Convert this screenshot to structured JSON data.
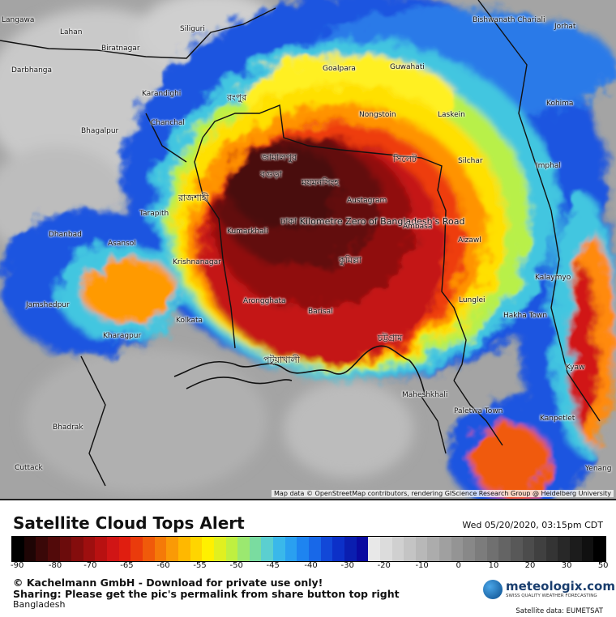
{
  "title": "Satellite Cloud Tops Alert",
  "timestamp": "Wed 05/20/2020, 03:15pm CDT",
  "attribution": "Map data © OpenStreetMap contributors, rendering GIScience Research Group @ Heidelberg University",
  "credit_line": "© Kachelmann GmbH - Download for private use only!",
  "sharing_line": "Sharing: Please get the pic's permalink from share button top right",
  "region": "Bangladesh",
  "logo": {
    "name": "meteologix.com",
    "tagline": "SWISS QUALITY WEATHER FORECASTING"
  },
  "satellite_source": "Satellite data: EUMETSAT",
  "colorbar": {
    "ticks": [
      "-90",
      "-80",
      "-70",
      "-65",
      "-60",
      "-55",
      "-50",
      "-45",
      "-40",
      "-30",
      "-20",
      "-10",
      "0",
      "10",
      "20",
      "30",
      "50"
    ],
    "colors": [
      "#000000",
      "#1e0505",
      "#3a0808",
      "#520a0a",
      "#6b0c0c",
      "#840d0d",
      "#9e0f0f",
      "#b81111",
      "#d11515",
      "#e01e10",
      "#ea3b0c",
      "#f05a0a",
      "#f57a08",
      "#fa9a06",
      "#ffb800",
      "#ffd500",
      "#fff000",
      "#e0f020",
      "#bff040",
      "#9be870",
      "#7adca0",
      "#5bcfd0",
      "#3ab8ea",
      "#2aa0f0",
      "#1e84f0",
      "#1868e8",
      "#1248d8",
      "#0c30c8",
      "#0a1eb0",
      "#0a0aa0",
      "#e8e8e8",
      "#dcdcdc",
      "#d0d0d0",
      "#c4c4c4",
      "#b8b8b8",
      "#acacac",
      "#a0a0a0",
      "#949494",
      "#888888",
      "#7c7c7c",
      "#707070",
      "#646464",
      "#585858",
      "#4c4c4c",
      "#404040",
      "#343434",
      "#282828",
      "#1c1c1c",
      "#101010",
      "#000000"
    ]
  },
  "places": [
    {
      "name": "Langawa",
      "big": false
    },
    {
      "name": "Lahan",
      "big": false
    },
    {
      "name": "Biratnagar",
      "big": false
    },
    {
      "name": "Siliguri",
      "big": false
    },
    {
      "name": "Darbhanga",
      "big": false
    },
    {
      "name": "Karandighi",
      "big": false
    },
    {
      "name": "রংপুর",
      "big": true
    },
    {
      "name": "Goalpara",
      "big": false
    },
    {
      "name": "Guwahati",
      "big": false
    },
    {
      "name": "Bishwanath Chariali",
      "big": false
    },
    {
      "name": "Jorhat",
      "big": false
    },
    {
      "name": "Bhagalpur",
      "big": false
    },
    {
      "name": "Chanchal",
      "big": false
    },
    {
      "name": "Nongstoin",
      "big": false
    },
    {
      "name": "Laskein",
      "big": false
    },
    {
      "name": "Kohima",
      "big": false
    },
    {
      "name": "জামালপুর",
      "big": true
    },
    {
      "name": "সিলেট",
      "big": true
    },
    {
      "name": "Silchar",
      "big": false
    },
    {
      "name": "বগুড়া",
      "big": true
    },
    {
      "name": "ময়মনসিংহ",
      "big": true
    },
    {
      "name": "Imphal",
      "big": false
    },
    {
      "name": "রাজশাহী",
      "big": true
    },
    {
      "name": "Austagram",
      "big": false
    },
    {
      "name": "Tarapith",
      "big": false
    },
    {
      "name": "ঢাকা Kilometre Zero of Bangladesh's Road",
      "big": true
    },
    {
      "name": "Ambasa",
      "big": false
    },
    {
      "name": "Dhanbad",
      "big": false
    },
    {
      "name": "Kumarkhali",
      "big": false
    },
    {
      "name": "Asansol",
      "big": false
    },
    {
      "name": "Aizawl",
      "big": false
    },
    {
      "name": "Krishnanagar",
      "big": false
    },
    {
      "name": "কুমিল্লা",
      "big": true
    },
    {
      "name": "Kalaymyo",
      "big": false
    },
    {
      "name": "Jamshedpur",
      "big": false
    },
    {
      "name": "Arongghata",
      "big": false
    },
    {
      "name": "Barisal",
      "big": false
    },
    {
      "name": "Lunglei",
      "big": false
    },
    {
      "name": "Hakha Town",
      "big": false
    },
    {
      "name": "Kolkata",
      "big": false
    },
    {
      "name": "Kharagpur",
      "big": false
    },
    {
      "name": "চট্টগ্রাম",
      "big": true
    },
    {
      "name": "পটুয়াখালী",
      "big": true
    },
    {
      "name": "Kyaw",
      "big": false
    },
    {
      "name": "Maheshkhali",
      "big": false
    },
    {
      "name": "Paletwa Town",
      "big": false
    },
    {
      "name": "Kanpetlet",
      "big": false
    },
    {
      "name": "Bhadrak",
      "big": false
    },
    {
      "name": "Cuttack",
      "big": false
    },
    {
      "name": "Yenang",
      "big": false
    }
  ]
}
